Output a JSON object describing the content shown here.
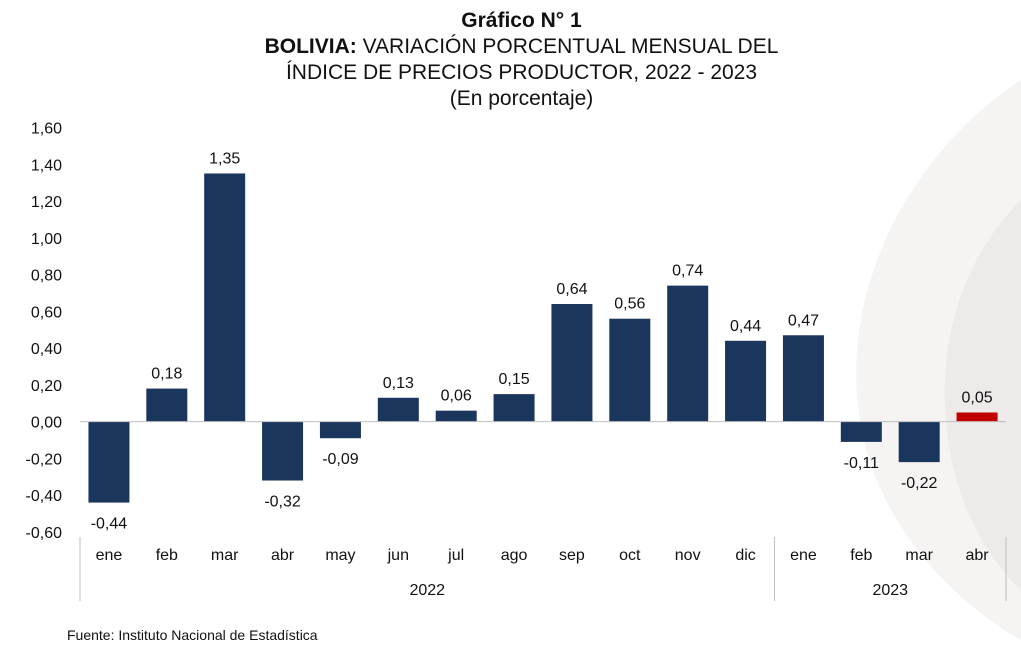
{
  "title": {
    "line1": "Gráfico N° 1",
    "line2_bold": "BOLIVIA:",
    "line2_rest": " VARIACIÓN PORCENTUAL MENSUAL DEL",
    "line3": "ÍNDICE DE PRECIOS PRODUCTOR, 2022 - 2023",
    "line4": "(En porcentaje)"
  },
  "source": "Fuente: Instituto Nacional de Estadística",
  "colors": {
    "bar": "#1b365d",
    "highlight": "#c00000",
    "axis": "#bfbfbf",
    "swoosh": "#f3efef"
  },
  "chart_data": {
    "type": "bar",
    "categories": [
      "ene",
      "feb",
      "mar",
      "abr",
      "may",
      "jun",
      "jul",
      "ago",
      "sep",
      "oct",
      "nov",
      "dic",
      "ene",
      "feb",
      "mar",
      "abr"
    ],
    "values": [
      -0.44,
      0.18,
      1.35,
      -0.32,
      -0.09,
      0.13,
      0.06,
      0.15,
      0.64,
      0.56,
      0.74,
      0.44,
      0.47,
      -0.11,
      -0.22,
      0.05
    ],
    "value_labels": [
      "-0,44",
      "0,18",
      "1,35",
      "-0,32",
      "-0,09",
      "0,13",
      "0,06",
      "0,15",
      "0,64",
      "0,56",
      "0,74",
      "0,44",
      "0,47",
      "-0,11",
      "-0,22",
      "0,05"
    ],
    "year_groups": [
      {
        "label": "2022",
        "count": 12
      },
      {
        "label": "2023",
        "count": 4
      }
    ],
    "highlight_index": 15,
    "ylim": [
      -0.6,
      1.6
    ],
    "y_ticks": [
      1.6,
      1.4,
      1.2,
      1.0,
      0.8,
      0.6,
      0.4,
      0.2,
      0.0,
      -0.2,
      -0.4,
      -0.6
    ],
    "y_tick_labels": [
      "1,60",
      "1,40",
      "1,20",
      "1,00",
      "0,80",
      "0,60",
      "0,40",
      "0,20",
      "0,00",
      "-0,20",
      "-0,40",
      "-0,60"
    ],
    "grid": false,
    "legend": "none"
  }
}
